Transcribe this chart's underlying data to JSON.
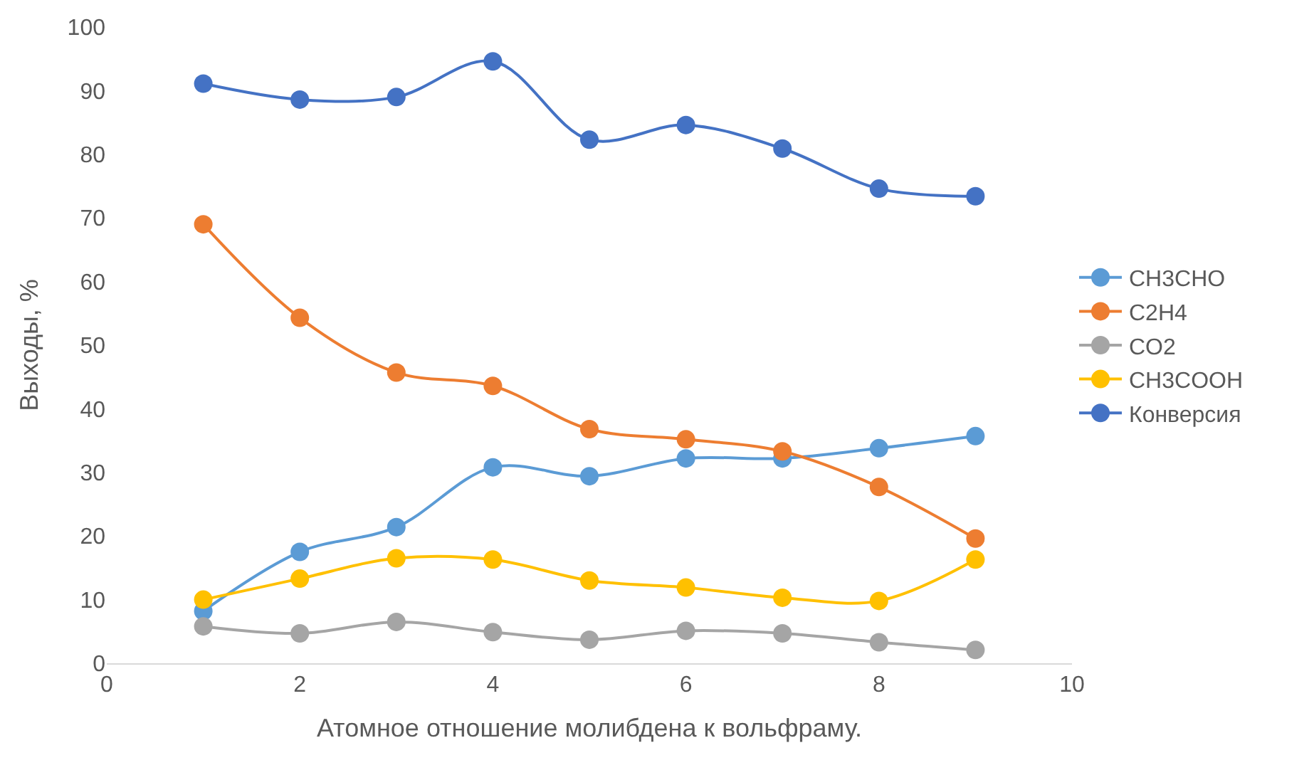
{
  "chart_data": {
    "type": "line",
    "xlabel": "Атомное отношение молибдена к вольфраму.",
    "ylabel": "Выходы, %",
    "x": [
      1,
      2,
      3,
      4,
      5,
      6,
      7,
      8,
      9
    ],
    "series": [
      {
        "name": "CH3CHO",
        "color": "#5b9bd5",
        "values": [
          8.2,
          17.5,
          21.4,
          30.8,
          29.4,
          32.2,
          32.2,
          33.8,
          35.7
        ]
      },
      {
        "name": "C2H4",
        "color": "#ed7d31",
        "values": [
          69,
          54.3,
          45.7,
          43.6,
          36.8,
          35.2,
          33.3,
          27.7,
          19.6
        ]
      },
      {
        "name": "CO2",
        "color": "#a5a5a5",
        "values": [
          5.8,
          4.7,
          6.5,
          4.9,
          3.7,
          5.1,
          4.7,
          3.3,
          2.1
        ]
      },
      {
        "name": "CH3COOH",
        "color": "#ffc000",
        "values": [
          10,
          13.3,
          16.5,
          16.3,
          13,
          11.9,
          10.3,
          9.8,
          16.3
        ]
      },
      {
        "name": "Конверсия",
        "color": "#4472c4",
        "values": [
          91.1,
          88.6,
          89,
          94.6,
          82.3,
          84.6,
          80.9,
          74.6,
          73.4
        ]
      }
    ],
    "xlim": [
      0,
      10
    ],
    "xticks": [
      0,
      2,
      4,
      6,
      8,
      10
    ],
    "ylim": [
      0,
      100
    ],
    "yticks": [
      0,
      10,
      20,
      30,
      40,
      50,
      60,
      70,
      80,
      90,
      100
    ],
    "grid": false,
    "legend": "right",
    "marker": "circle",
    "line_style": "solid"
  }
}
